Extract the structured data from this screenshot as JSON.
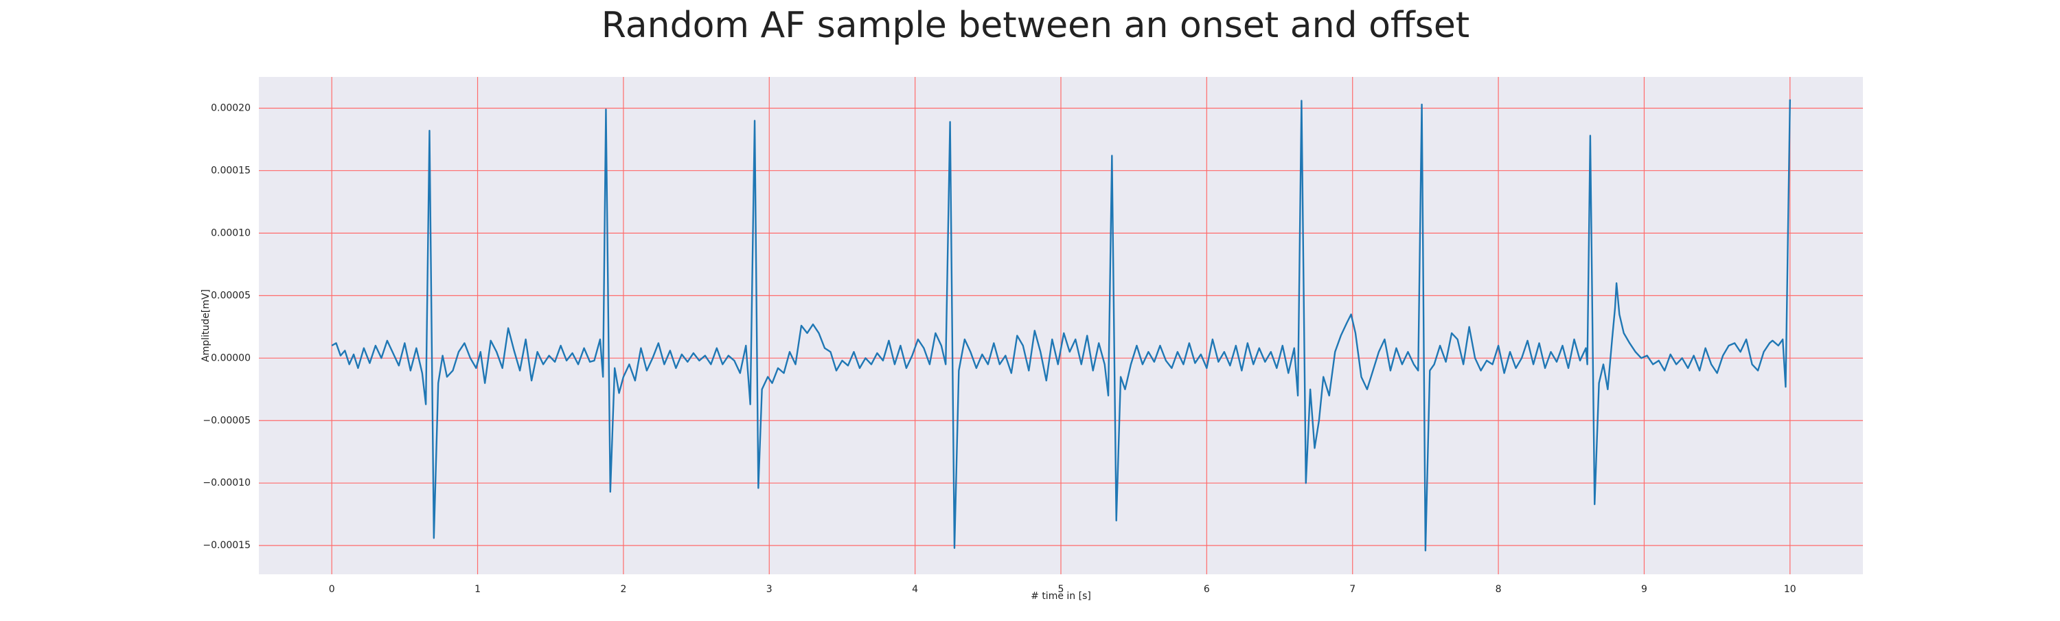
{
  "chart_data": {
    "type": "line",
    "title": "Random AF sample between an onset and offset",
    "xlabel": "# time in [s]",
    "ylabel": "Amplitude[mV]",
    "xlim": [
      -0.5,
      10.5
    ],
    "ylim": [
      -0.000173,
      0.000225
    ],
    "xticks": [
      0,
      1,
      2,
      3,
      4,
      5,
      6,
      7,
      8,
      9,
      10
    ],
    "yticks": [
      {
        "value": -0.00015,
        "label": "−0.00015"
      },
      {
        "value": -0.0001,
        "label": "−0.00010"
      },
      {
        "value": -5e-05,
        "label": "−0.00005"
      },
      {
        "value": 0,
        "label": "0.00000"
      },
      {
        "value": 5e-05,
        "label": "0.00005"
      },
      {
        "value": 0.0001,
        "label": "0.00010"
      },
      {
        "value": 0.00015,
        "label": "0.00015"
      },
      {
        "value": 0.0002,
        "label": "0.00020"
      }
    ],
    "grid": true,
    "grid_color": "#ff6b6b",
    "background": "#eaeaf2",
    "color": "#1f77b4",
    "x": [
      0,
      0.03,
      0.06,
      0.09,
      0.12,
      0.15,
      0.18,
      0.22,
      0.26,
      0.3,
      0.34,
      0.38,
      0.42,
      0.46,
      0.5,
      0.54,
      0.58,
      0.62,
      0.645,
      0.67,
      0.7,
      0.73,
      0.76,
      0.79,
      0.83,
      0.87,
      0.91,
      0.95,
      0.99,
      1.02,
      1.05,
      1.09,
      1.13,
      1.17,
      1.21,
      1.25,
      1.29,
      1.33,
      1.37,
      1.41,
      1.45,
      1.49,
      1.53,
      1.57,
      1.61,
      1.65,
      1.69,
      1.73,
      1.77,
      1.8,
      1.84,
      1.86,
      1.88,
      1.91,
      1.94,
      1.97,
      2,
      2.04,
      2.08,
      2.12,
      2.16,
      2.2,
      2.24,
      2.28,
      2.32,
      2.36,
      2.4,
      2.44,
      2.48,
      2.52,
      2.56,
      2.6,
      2.64,
      2.68,
      2.72,
      2.76,
      2.8,
      2.84,
      2.87,
      2.9,
      2.925,
      2.95,
      2.99,
      3.02,
      3.06,
      3.1,
      3.14,
      3.18,
      3.22,
      3.26,
      3.3,
      3.34,
      3.38,
      3.42,
      3.46,
      3.5,
      3.54,
      3.58,
      3.62,
      3.66,
      3.7,
      3.74,
      3.78,
      3.82,
      3.86,
      3.9,
      3.94,
      3.98,
      4.02,
      4.06,
      4.1,
      4.14,
      4.18,
      4.21,
      4.24,
      4.27,
      4.3,
      4.34,
      4.38,
      4.42,
      4.46,
      4.5,
      4.54,
      4.58,
      4.62,
      4.66,
      4.7,
      4.74,
      4.78,
      4.82,
      4.86,
      4.9,
      4.94,
      4.98,
      5.02,
      5.06,
      5.1,
      5.14,
      5.18,
      5.22,
      5.26,
      5.3,
      5.325,
      5.35,
      5.38,
      5.41,
      5.44,
      5.48,
      5.52,
      5.56,
      5.6,
      5.64,
      5.68,
      5.72,
      5.76,
      5.8,
      5.84,
      5.88,
      5.92,
      5.96,
      6,
      6.04,
      6.08,
      6.12,
      6.16,
      6.2,
      6.24,
      6.28,
      6.32,
      6.36,
      6.4,
      6.44,
      6.48,
      6.52,
      6.56,
      6.6,
      6.625,
      6.65,
      6.68,
      6.71,
      6.74,
      6.77,
      6.8,
      6.84,
      6.88,
      6.92,
      6.96,
      6.99,
      7.02,
      7.06,
      7.1,
      7.14,
      7.18,
      7.22,
      7.26,
      7.3,
      7.34,
      7.38,
      7.42,
      7.45,
      7.475,
      7.5,
      7.53,
      7.56,
      7.6,
      7.64,
      7.68,
      7.72,
      7.76,
      7.8,
      7.84,
      7.88,
      7.92,
      7.96,
      8,
      8.04,
      8.08,
      8.12,
      8.16,
      8.2,
      8.24,
      8.28,
      8.32,
      8.36,
      8.4,
      8.44,
      8.48,
      8.52,
      8.56,
      8.6,
      8.61,
      8.63,
      8.66,
      8.69,
      8.72,
      8.75,
      8.78,
      8.8,
      8.81,
      8.83,
      8.86,
      8.9,
      8.94,
      8.98,
      9.02,
      9.06,
      9.1,
      9.14,
      9.18,
      9.22,
      9.26,
      9.3,
      9.34,
      9.38,
      9.42,
      9.46,
      9.5,
      9.54,
      9.58,
      9.62,
      9.66,
      9.7,
      9.74,
      9.78,
      9.82,
      9.86,
      9.88,
      9.92,
      9.95,
      9.97,
      10
    ],
    "values": [
      1e-05,
      1.2e-05,
      2e-06,
      6e-06,
      -5e-06,
      3e-06,
      -8e-06,
      8e-06,
      -4e-06,
      1e-05,
      0,
      1.4e-05,
      4e-06,
      -6e-06,
      1.2e-05,
      -1e-05,
      8e-06,
      -1.2e-05,
      -3.7e-05,
      0.000182,
      -0.000144,
      -2e-05,
      2e-06,
      -1.5e-05,
      -1e-05,
      5e-06,
      1.2e-05,
      0,
      -8e-06,
      5e-06,
      -2e-05,
      1.4e-05,
      5e-06,
      -8e-06,
      2.4e-05,
      6e-06,
      -1e-05,
      1.5e-05,
      -1.8e-05,
      5e-06,
      -5e-06,
      2e-06,
      -3e-06,
      1e-05,
      -2e-06,
      4e-06,
      -5e-06,
      8e-06,
      -3e-06,
      -2e-06,
      1.5e-05,
      -1.5e-05,
      0.000199,
      -0.000107,
      -8e-06,
      -2.8e-05,
      -1.5e-05,
      -5e-06,
      -1.8e-05,
      8e-06,
      -1e-05,
      0,
      1.2e-05,
      -5e-06,
      6e-06,
      -8e-06,
      3e-06,
      -3e-06,
      4e-06,
      -2e-06,
      2e-06,
      -5e-06,
      8e-06,
      -5e-06,
      2e-06,
      -2e-06,
      -1.2e-05,
      1e-05,
      -3.7e-05,
      0.00019,
      -0.000104,
      -2.5e-05,
      -1.5e-05,
      -2e-05,
      -8e-06,
      -1.2e-05,
      5e-06,
      -5e-06,
      2.6e-05,
      2e-05,
      2.7e-05,
      2e-05,
      8e-06,
      5e-06,
      -1e-05,
      -2e-06,
      -6e-06,
      5e-06,
      -8e-06,
      0,
      -5e-06,
      4e-06,
      -2e-06,
      1.4e-05,
      -5e-06,
      1e-05,
      -8e-06,
      2e-06,
      1.5e-05,
      8e-06,
      -5e-06,
      2e-05,
      1e-05,
      -5e-06,
      0.000189,
      -0.000152,
      -1e-05,
      1.5e-05,
      5e-06,
      -8e-06,
      3e-06,
      -5e-06,
      1.2e-05,
      -5e-06,
      2e-06,
      -1.2e-05,
      1.8e-05,
      1e-05,
      -1e-05,
      2.2e-05,
      5e-06,
      -1.8e-05,
      1.5e-05,
      -5e-06,
      2e-05,
      5e-06,
      1.5e-05,
      -5e-06,
      1.8e-05,
      -1e-05,
      1.2e-05,
      -5e-06,
      -3e-05,
      0.000162,
      -0.00013,
      -1.5e-05,
      -2.5e-05,
      -5e-06,
      1e-05,
      -5e-06,
      5e-06,
      -3e-06,
      1e-05,
      -2e-06,
      -8e-06,
      5e-06,
      -5e-06,
      1.2e-05,
      -4e-06,
      3e-06,
      -8e-06,
      1.5e-05,
      -3e-06,
      5e-06,
      -6e-06,
      1e-05,
      -1e-05,
      1.2e-05,
      -5e-06,
      8e-06,
      -3e-06,
      5e-06,
      -8e-06,
      1e-05,
      -1.2e-05,
      8e-06,
      -3e-05,
      0.000206,
      -0.0001,
      -2.5e-05,
      -7.2e-05,
      -5e-05,
      -1.5e-05,
      -3e-05,
      5e-06,
      1.8e-05,
      2.8e-05,
      3.5e-05,
      2e-05,
      -1.5e-05,
      -2.5e-05,
      -1e-05,
      5e-06,
      1.5e-05,
      -1e-05,
      8e-06,
      -5e-06,
      5e-06,
      -5e-06,
      -1e-05,
      0.000203,
      -0.000154,
      -1e-05,
      -5e-06,
      1e-05,
      -3e-06,
      2e-05,
      1.5e-05,
      -5e-06,
      2.5e-05,
      0,
      -1e-05,
      -2e-06,
      -5e-06,
      1e-05,
      -1.2e-05,
      5e-06,
      -8e-06,
      0,
      1.4e-05,
      -5e-06,
      1.2e-05,
      -8e-06,
      5e-06,
      -3e-06,
      1e-05,
      -8e-06,
      1.5e-05,
      -2e-06,
      8e-06,
      -5e-06,
      0.000178,
      -0.000117,
      -2e-05,
      -5e-06,
      -2.5e-05,
      1.5e-05,
      4e-05,
      6e-05,
      3.5e-05,
      2e-05,
      1.2e-05,
      5e-06,
      0,
      2e-06,
      -5e-06,
      -2e-06,
      -1e-05,
      3e-06,
      -5e-06,
      0,
      -8e-06,
      2e-06,
      -1e-05,
      8e-06,
      -5e-06,
      -1.2e-05,
      2e-06,
      1e-05,
      1.2e-05,
      5e-06,
      1.5e-05,
      -5e-06,
      -1e-05,
      5e-06,
      1.2e-05,
      1.4e-05,
      1e-05,
      1.5e-05,
      -2.3e-05,
      0.000207
    ]
  }
}
